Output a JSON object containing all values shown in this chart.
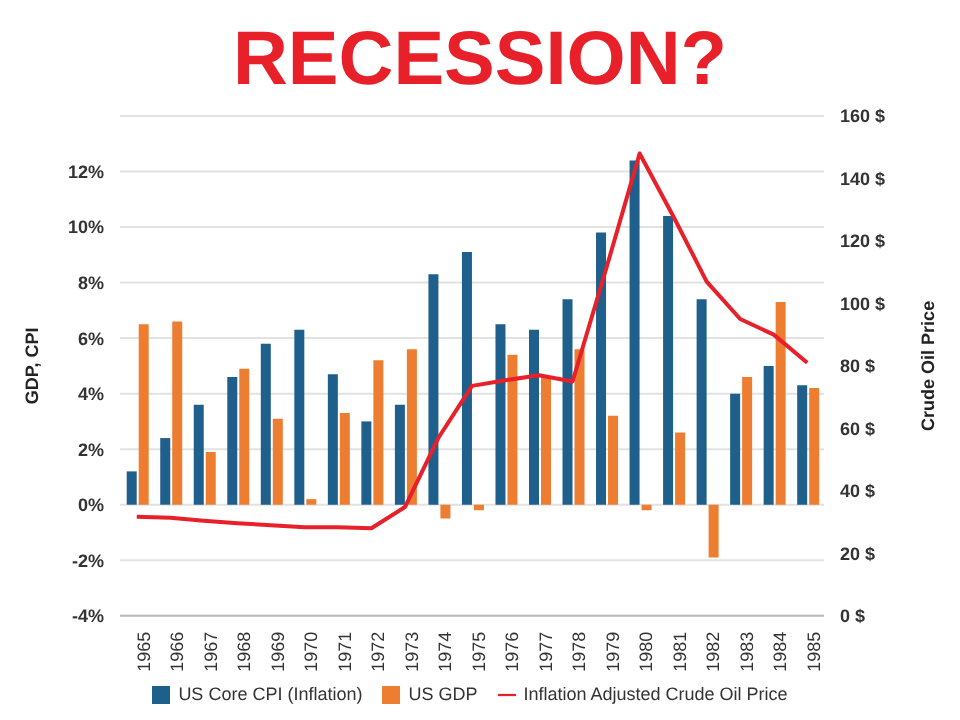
{
  "chart_data": {
    "type": "bar",
    "title": "RECESSION?",
    "ylabel": "GDP, CPI",
    "y2label": "Crude Oil Price",
    "categories": [
      "1965",
      "1966",
      "1967",
      "1968",
      "1969",
      "1970",
      "1971",
      "1972",
      "1973",
      "1974",
      "1975",
      "1976",
      "1977",
      "1978",
      "1979",
      "1980",
      "1981",
      "1982",
      "1983",
      "1984",
      "1985"
    ],
    "series": [
      {
        "name": "US Core CPI (Inflation)",
        "color": "#1f5f8b",
        "values": [
          1.2,
          2.4,
          3.6,
          4.6,
          5.8,
          6.3,
          4.7,
          3.0,
          3.6,
          8.3,
          9.1,
          6.5,
          6.3,
          7.4,
          9.8,
          12.4,
          10.4,
          7.4,
          4.0,
          5.0,
          4.3
        ]
      },
      {
        "name": "US GDP",
        "color": "#ed7d31",
        "values": [
          6.5,
          6.6,
          1.9,
          4.9,
          3.1,
          0.2,
          3.3,
          5.2,
          5.6,
          -0.5,
          -0.2,
          5.4,
          4.6,
          5.6,
          3.2,
          -0.2,
          2.6,
          -1.9,
          4.6,
          7.3,
          4.2
        ]
      },
      {
        "name": "Inflation Adjusted Crude Oil Price",
        "type": "line",
        "axis": "y2",
        "color": "#e8202a",
        "values": [
          31.7,
          31.4,
          30.4,
          29.6,
          29,
          28.3,
          28.3,
          28,
          34.8,
          57,
          73.6,
          75.4,
          77,
          75,
          111,
          148,
          128,
          107,
          95,
          90,
          81
        ]
      }
    ],
    "ylim": [
      -4,
      14
    ],
    "yticks": [
      {
        "value": -4,
        "label": "-4%"
      },
      {
        "value": -2,
        "label": "-2%"
      },
      {
        "value": 0,
        "label": "0%"
      },
      {
        "value": 2,
        "label": "2%"
      },
      {
        "value": 4,
        "label": "4%"
      },
      {
        "value": 6,
        "label": "6%"
      },
      {
        "value": 8,
        "label": "8%"
      },
      {
        "value": 10,
        "label": "10%"
      },
      {
        "value": 12,
        "label": "12%"
      }
    ],
    "y2lim": [
      0,
      160
    ],
    "y2ticks": [
      {
        "value": 0,
        "label": "0 $"
      },
      {
        "value": 20,
        "label": "20 $"
      },
      {
        "value": 40,
        "label": "40 $"
      },
      {
        "value": 60,
        "label": "60 $"
      },
      {
        "value": 80,
        "label": "80 $"
      },
      {
        "value": 100,
        "label": "100 $"
      },
      {
        "value": 120,
        "label": "120 $"
      },
      {
        "value": 140,
        "label": "140 $"
      },
      {
        "value": 160,
        "label": "160 $"
      }
    ],
    "grid": "y",
    "legend": "bottom"
  }
}
